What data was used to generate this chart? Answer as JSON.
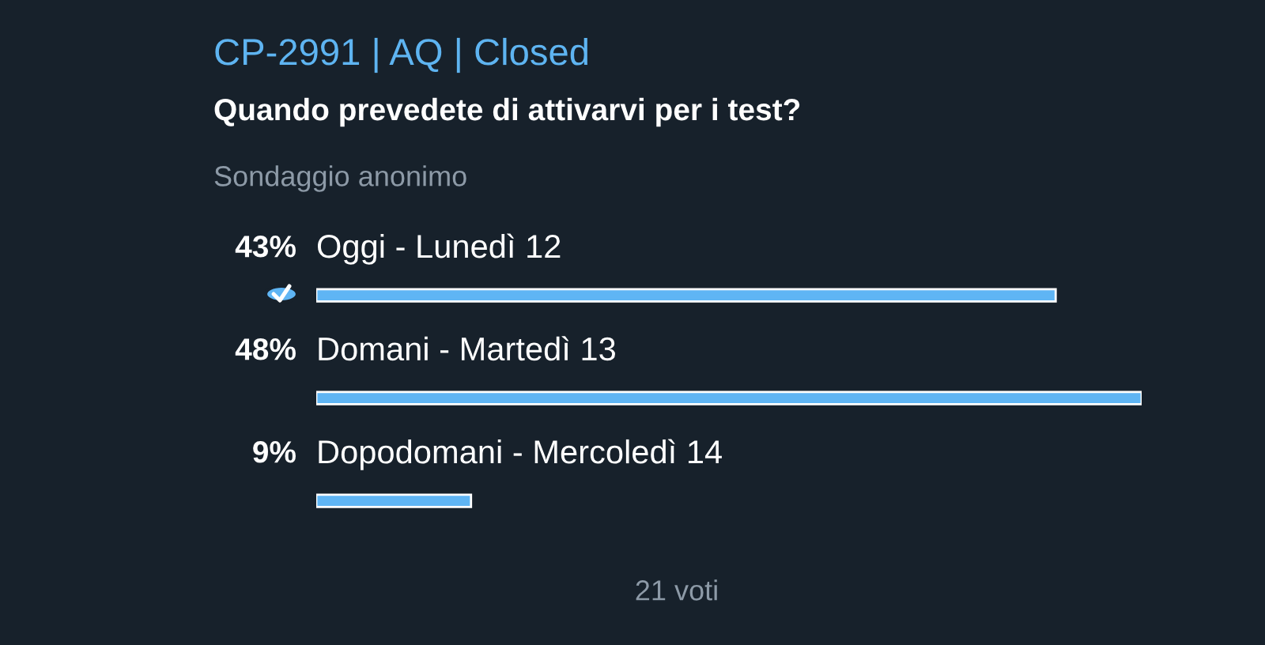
{
  "chart_data": {
    "type": "bar",
    "orientation": "horizontal",
    "title": "CP-2991 | AQ | Closed",
    "subtitle": "Quando prevedete di attivarvi per i test?",
    "annotations": [
      "Sondaggio anonimo",
      "21 voti"
    ],
    "categories": [
      "Oggi - Lunedì 12",
      "Domani - Martedì 13",
      "Dopodomani - Mercoledì 14"
    ],
    "values": [
      43,
      48,
      9
    ],
    "value_labels": [
      "43%",
      "48%",
      "9%"
    ],
    "color": "#5fb5f4"
  }
}
